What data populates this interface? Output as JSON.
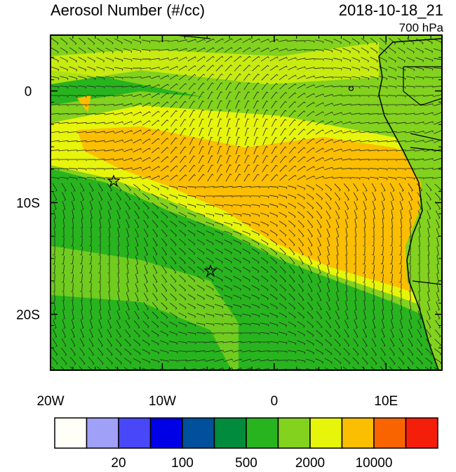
{
  "title": "Aerosol Number (#/cc)",
  "valid_time": "2018-10-18_21",
  "level": "700 hPa",
  "map": {
    "lon_range": [
      -20,
      15
    ],
    "lat_range": [
      -25,
      5
    ],
    "lon_ticks": [
      {
        "value": -20,
        "label": "20W"
      },
      {
        "value": -10,
        "label": "10W"
      },
      0,
      {
        "value": 10,
        "label": "10E"
      }
    ],
    "lat_ticks": [
      0,
      {
        "value": -10,
        "label": "10S"
      },
      {
        "value": -20,
        "label": "20S"
      }
    ]
  },
  "colorbar": {
    "colors": [
      "#fffff8",
      "#a0a0f8",
      "#4848f8",
      "#0000e6",
      "#00509c",
      "#008c3c",
      "#28b41e",
      "#82d21e",
      "#e6f50a",
      "#fbbe00",
      "#fa6400",
      "#f51e0a"
    ],
    "labels": [
      20,
      100,
      500,
      2000,
      10000
    ]
  }
}
